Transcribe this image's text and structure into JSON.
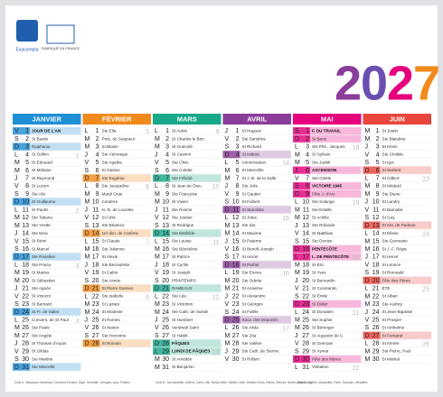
{
  "brand": "Exacompta",
  "made_in": "FABRIQUÉ EN FRANCE",
  "year_digits": [
    "2",
    "0",
    "2",
    "7"
  ],
  "year_colors": [
    "#8b3d9a",
    "#6a4fb0",
    "#e6007e",
    "#f08a1c"
  ],
  "months": [
    {
      "name": "JANVIER",
      "color": "#1f8fd6",
      "holidays": [
        1
      ],
      "days": [
        [
          "V",
          1,
          "JOUR DE L'AN"
        ],
        [
          "S",
          2,
          "St Basile"
        ],
        [
          "D",
          3,
          "Épiphanie"
        ],
        [
          "L",
          4,
          "St Odilon",
          1
        ],
        [
          "M",
          5,
          "St Édouard"
        ],
        [
          "M",
          6,
          "St Mélaine"
        ],
        [
          "J",
          7,
          "St Raymond"
        ],
        [
          "V",
          8,
          "St Lucien"
        ],
        [
          "S",
          9,
          "Ste Alix"
        ],
        [
          "D",
          10,
          "St Guillaume"
        ],
        [
          "L",
          11,
          "St Paulin",
          2
        ],
        [
          "M",
          12,
          "Ste Tatiana"
        ],
        [
          "M",
          13,
          "Ste Yvette"
        ],
        [
          "J",
          14,
          "Ste Nina"
        ],
        [
          "V",
          15,
          "St Rémi"
        ],
        [
          "S",
          16,
          "St Marcel"
        ],
        [
          "D",
          17,
          "Ste Roseline"
        ],
        [
          "L",
          18,
          "Ste Prisca",
          3
        ],
        [
          "M",
          19,
          "St Marius"
        ],
        [
          "M",
          20,
          "St Sébastien"
        ],
        [
          "J",
          21,
          "Ste Agnès"
        ],
        [
          "V",
          22,
          "St Vincent"
        ],
        [
          "S",
          23,
          "St Barnard"
        ],
        [
          "D",
          24,
          "St Fr. de Sales"
        ],
        [
          "L",
          25,
          "Convers. de St Paul",
          4
        ],
        [
          "M",
          26,
          "Ste Paule"
        ],
        [
          "M",
          27,
          "Ste Angèle"
        ],
        [
          "J",
          28,
          "St Thomas d'Aquin"
        ],
        [
          "V",
          29,
          "St Gildas"
        ],
        [
          "S",
          30,
          "Ste Martine"
        ],
        [
          "D",
          31,
          "Ste Marcelle"
        ]
      ]
    },
    {
      "name": "FÉVRIER",
      "color": "#f08a1c",
      "holidays": [],
      "days": [
        [
          "L",
          1,
          "Ste Ella",
          5
        ],
        [
          "M",
          2,
          "Prés. du Seigneur"
        ],
        [
          "M",
          3,
          "St Blaise"
        ],
        [
          "J",
          4,
          "Ste Véronique"
        ],
        [
          "V",
          5,
          "Ste Agathe"
        ],
        [
          "S",
          6,
          "St Gaston"
        ],
        [
          "D",
          7,
          "Ste Eugénie"
        ],
        [
          "L",
          8,
          "Ste Jacqueline",
          6
        ],
        [
          "M",
          9,
          "Mardi Gras"
        ],
        [
          "M",
          10,
          "Cendres"
        ],
        [
          "J",
          11,
          "N.-D. de Lourdes"
        ],
        [
          "V",
          12,
          "St Félix"
        ],
        [
          "S",
          13,
          "Ste Béatrice"
        ],
        [
          "D",
          14,
          "1er dim. de Carême"
        ],
        [
          "L",
          15,
          "St Claude",
          7
        ],
        [
          "M",
          16,
          "Ste Julienne"
        ],
        [
          "M",
          17,
          "St Alexis"
        ],
        [
          "J",
          18,
          "Ste Bernadette"
        ],
        [
          "V",
          19,
          "St Gabin"
        ],
        [
          "S",
          20,
          "Ste Aimée"
        ],
        [
          "D",
          21,
          "St Pierre Damien"
        ],
        [
          "L",
          22,
          "Ste Isabelle",
          8
        ],
        [
          "M",
          23,
          "St Lazare"
        ],
        [
          "M",
          24,
          "St Modeste"
        ],
        [
          "J",
          25,
          "St Roméo"
        ],
        [
          "V",
          26,
          "St Nestor"
        ],
        [
          "S",
          27,
          "Ste Honorine"
        ],
        [
          "D",
          28,
          "St Romain"
        ]
      ]
    },
    {
      "name": "MARS",
      "color": "#18a88a",
      "holidays": [
        28,
        29
      ],
      "days": [
        [
          "L",
          1,
          "St Aubin",
          9
        ],
        [
          "M",
          2,
          "St Charles le Bon"
        ],
        [
          "M",
          3,
          "St Guénolé"
        ],
        [
          "J",
          4,
          "St Casimir"
        ],
        [
          "V",
          5,
          "Ste Olive"
        ],
        [
          "S",
          6,
          "Ste Colette"
        ],
        [
          "D",
          7,
          "Ste Félicité"
        ],
        [
          "L",
          8,
          "St Jean de Dieu",
          10
        ],
        [
          "M",
          9,
          "Ste Françoise"
        ],
        [
          "M",
          10,
          "St Vivien"
        ],
        [
          "J",
          11,
          "Ste Rosine"
        ],
        [
          "V",
          12,
          "Ste Justine"
        ],
        [
          "S",
          13,
          "St Rodrigue"
        ],
        [
          "D",
          14,
          "Ste Mathilde"
        ],
        [
          "L",
          15,
          "Ste Louise",
          11
        ],
        [
          "M",
          16,
          "Ste Bénédicte"
        ],
        [
          "M",
          17,
          "St Patrice"
        ],
        [
          "J",
          18,
          "St Cyrille"
        ],
        [
          "V",
          19,
          "St Joseph"
        ],
        [
          "S",
          20,
          "PRINTEMPS"
        ],
        [
          "D",
          21,
          "RAMEAUX"
        ],
        [
          "L",
          22,
          "Ste Léa",
          12
        ],
        [
          "M",
          23,
          "St Victorien"
        ],
        [
          "M",
          24,
          "Ste Cath. de Suède"
        ],
        [
          "J",
          25,
          "St Humbert"
        ],
        [
          "V",
          26,
          "Vendredi Saint"
        ],
        [
          "S",
          27,
          "St Habib"
        ],
        [
          "D",
          28,
          "PÂQUES"
        ],
        [
          "L",
          29,
          "LUNDI DE PÂQUES",
          13
        ],
        [
          "M",
          30,
          "St Amédée"
        ],
        [
          "M",
          31,
          "St Benjamin"
        ]
      ]
    },
    {
      "name": "AVRIL",
      "color": "#8b3d9a",
      "holidays": [],
      "days": [
        [
          "J",
          1,
          "St Hugues"
        ],
        [
          "V",
          2,
          "Ste Sandrine"
        ],
        [
          "S",
          3,
          "St Richard"
        ],
        [
          "D",
          4,
          "St Isidore"
        ],
        [
          "L",
          5,
          "Annonciation",
          14
        ],
        [
          "M",
          6,
          "St Marcellin"
        ],
        [
          "M",
          7,
          "St J.-B. de la Salle"
        ],
        [
          "J",
          8,
          "Ste Julie"
        ],
        [
          "V",
          9,
          "St Gautier"
        ],
        [
          "S",
          10,
          "St Fulbert"
        ],
        [
          "D",
          11,
          "St Stanislas"
        ],
        [
          "L",
          12,
          "St Jules",
          15
        ],
        [
          "M",
          13,
          "Ste Ida"
        ],
        [
          "M",
          14,
          "St Maxime"
        ],
        [
          "J",
          15,
          "St Paterne"
        ],
        [
          "V",
          16,
          "St Benoît-Joseph"
        ],
        [
          "S",
          17,
          "St Anicet"
        ],
        [
          "D",
          18,
          "St Parfait"
        ],
        [
          "L",
          19,
          "Ste Emma",
          16
        ],
        [
          "M",
          20,
          "Ste Odette"
        ],
        [
          "M",
          21,
          "St Anselme"
        ],
        [
          "J",
          22,
          "St Alexandre"
        ],
        [
          "V",
          23,
          "St Georges"
        ],
        [
          "S",
          24,
          "St Fidèle"
        ],
        [
          "D",
          25,
          "Souv. des Déportés"
        ],
        [
          "L",
          26,
          "Ste Alida",
          17
        ],
        [
          "M",
          27,
          "Ste Zita"
        ],
        [
          "M",
          28,
          "Ste Valérie"
        ],
        [
          "J",
          29,
          "Ste Cath. de Sienne"
        ],
        [
          "V",
          30,
          "St Robert"
        ]
      ]
    },
    {
      "name": "MAI",
      "color": "#e6007e",
      "holidays": [
        1,
        6,
        8,
        16,
        17
      ],
      "days": [
        [
          "S",
          1,
          "F. DU TRAVAIL"
        ],
        [
          "D",
          2,
          "St Boris"
        ],
        [
          "L",
          3,
          "Sts Phil., Jacques",
          18
        ],
        [
          "M",
          4,
          "St Sylvain"
        ],
        [
          "M",
          5,
          "Ste Judith"
        ],
        [
          "J",
          6,
          "ASCENSION"
        ],
        [
          "V",
          7,
          "Ste Gisèle"
        ],
        [
          "S",
          8,
          "VICTOIRE 1945"
        ],
        [
          "D",
          9,
          "Fête J. d'Arc"
        ],
        [
          "L",
          10,
          "Ste Solange",
          19
        ],
        [
          "M",
          11,
          "Ste Estelle"
        ],
        [
          "M",
          12,
          "St Achille"
        ],
        [
          "J",
          13,
          "Ste Rolande"
        ],
        [
          "V",
          14,
          "St Matthias"
        ],
        [
          "S",
          15,
          "Ste Denise"
        ],
        [
          "D",
          16,
          "PENTECÔTE"
        ],
        [
          "L",
          17,
          "L. DE PENTECÔTE",
          20
        ],
        [
          "M",
          18,
          "St Éric"
        ],
        [
          "M",
          19,
          "St Yves"
        ],
        [
          "J",
          20,
          "St Bernardin"
        ],
        [
          "V",
          21,
          "St Constantin"
        ],
        [
          "S",
          22,
          "St Émile"
        ],
        [
          "D",
          23,
          "St Didier"
        ],
        [
          "L",
          24,
          "St Donatien",
          21
        ],
        [
          "M",
          25,
          "Ste Sophie"
        ],
        [
          "M",
          26,
          "St Bérenger"
        ],
        [
          "J",
          27,
          "St Augustin de C."
        ],
        [
          "V",
          28,
          "St Germain"
        ],
        [
          "S",
          29,
          "St Aymar"
        ],
        [
          "D",
          30,
          "Fête des Mères"
        ],
        [
          "L",
          31,
          "Visitation",
          22
        ]
      ]
    },
    {
      "name": "JUIN",
      "color": "#e8453c",
      "holidays": [],
      "days": [
        [
          "M",
          1,
          "St Justin"
        ],
        [
          "M",
          2,
          "Ste Blandine"
        ],
        [
          "J",
          3,
          "St Kévin"
        ],
        [
          "V",
          4,
          "Ste Clotilde"
        ],
        [
          "S",
          5,
          "St Igor"
        ],
        [
          "D",
          6,
          "St Norbert"
        ],
        [
          "L",
          7,
          "St Gilbert",
          23
        ],
        [
          "M",
          8,
          "St Médard"
        ],
        [
          "M",
          9,
          "Ste Diane"
        ],
        [
          "J",
          10,
          "St Landry"
        ],
        [
          "V",
          11,
          "St Barnabé"
        ],
        [
          "S",
          12,
          "St Guy"
        ],
        [
          "D",
          13,
          "St Ant. de Padoue"
        ],
        [
          "L",
          14,
          "St Élisée",
          24
        ],
        [
          "M",
          15,
          "Ste Germaine"
        ],
        [
          "M",
          16,
          "St J.-F. Régis"
        ],
        [
          "J",
          17,
          "St Hervé"
        ],
        [
          "V",
          18,
          "St Léonce"
        ],
        [
          "S",
          19,
          "St Romuald"
        ],
        [
          "D",
          20,
          "Fête des Pères"
        ],
        [
          "L",
          21,
          "ÉTÉ",
          25
        ],
        [
          "M",
          22,
          "St Alban"
        ],
        [
          "M",
          23,
          "Ste Audrey"
        ],
        [
          "J",
          24,
          "St Jean-Baptiste"
        ],
        [
          "V",
          25,
          "St Prosper"
        ],
        [
          "S",
          26,
          "St Anthelme"
        ],
        [
          "D",
          27,
          "St Fernand"
        ],
        [
          "L",
          28,
          "St Irénée",
          26
        ],
        [
          "M",
          29,
          "Sts Pierre, Paul"
        ],
        [
          "M",
          30,
          "St Martial"
        ]
      ]
    }
  ],
  "footer": [
    "Zone A : Besançon, Bordeaux, Clermont-Ferrand, Dijon, Grenoble, Limoges, Lyon, Poitiers",
    "Zone B : Aix-Marseille, Amiens, Caen, Lille, Nancy-Metz, Nantes, Nice, Orléans-Tours, Reims, Rennes, Rouen, Strasbourg",
    "Zone C : Créteil, Montpellier, Paris, Toulouse, Versailles"
  ]
}
